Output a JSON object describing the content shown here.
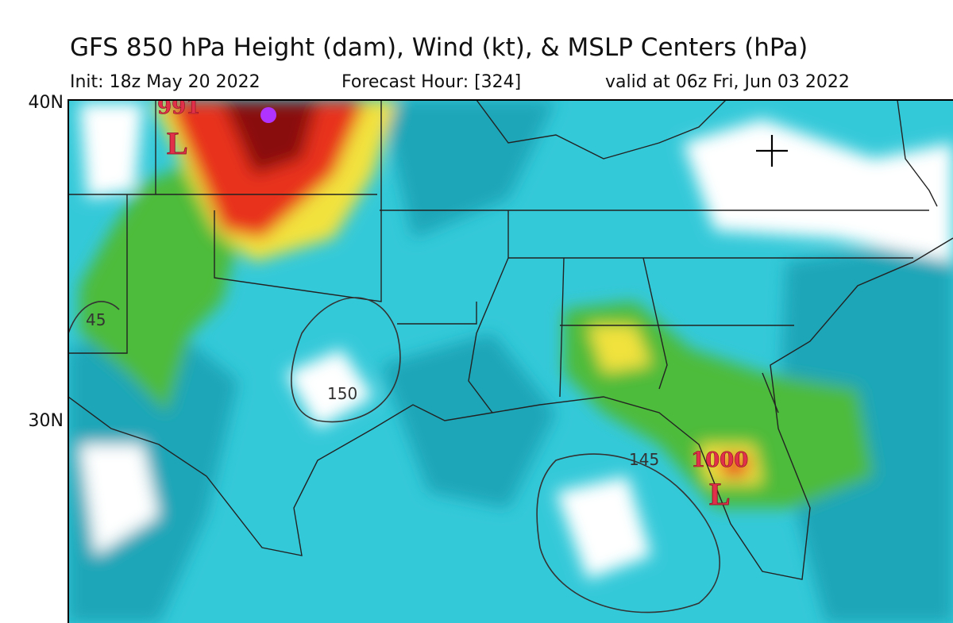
{
  "header": {
    "title": "GFS 850 hPa Height (dam), Wind (kt), & MSLP Centers (hPa)",
    "init": "Init: 18z May 20 2022",
    "forecast_hour": "Forecast Hour: [324]",
    "valid": "valid at 06z Fri, Jun 03 2022"
  },
  "map": {
    "latitude_labels": [
      "40N",
      "30N"
    ],
    "contour_labels": [
      "45",
      "150",
      "145"
    ],
    "lows": [
      {
        "pressure": "991",
        "symbol": "L"
      },
      {
        "pressure": "1000",
        "symbol": "L"
      }
    ]
  }
}
